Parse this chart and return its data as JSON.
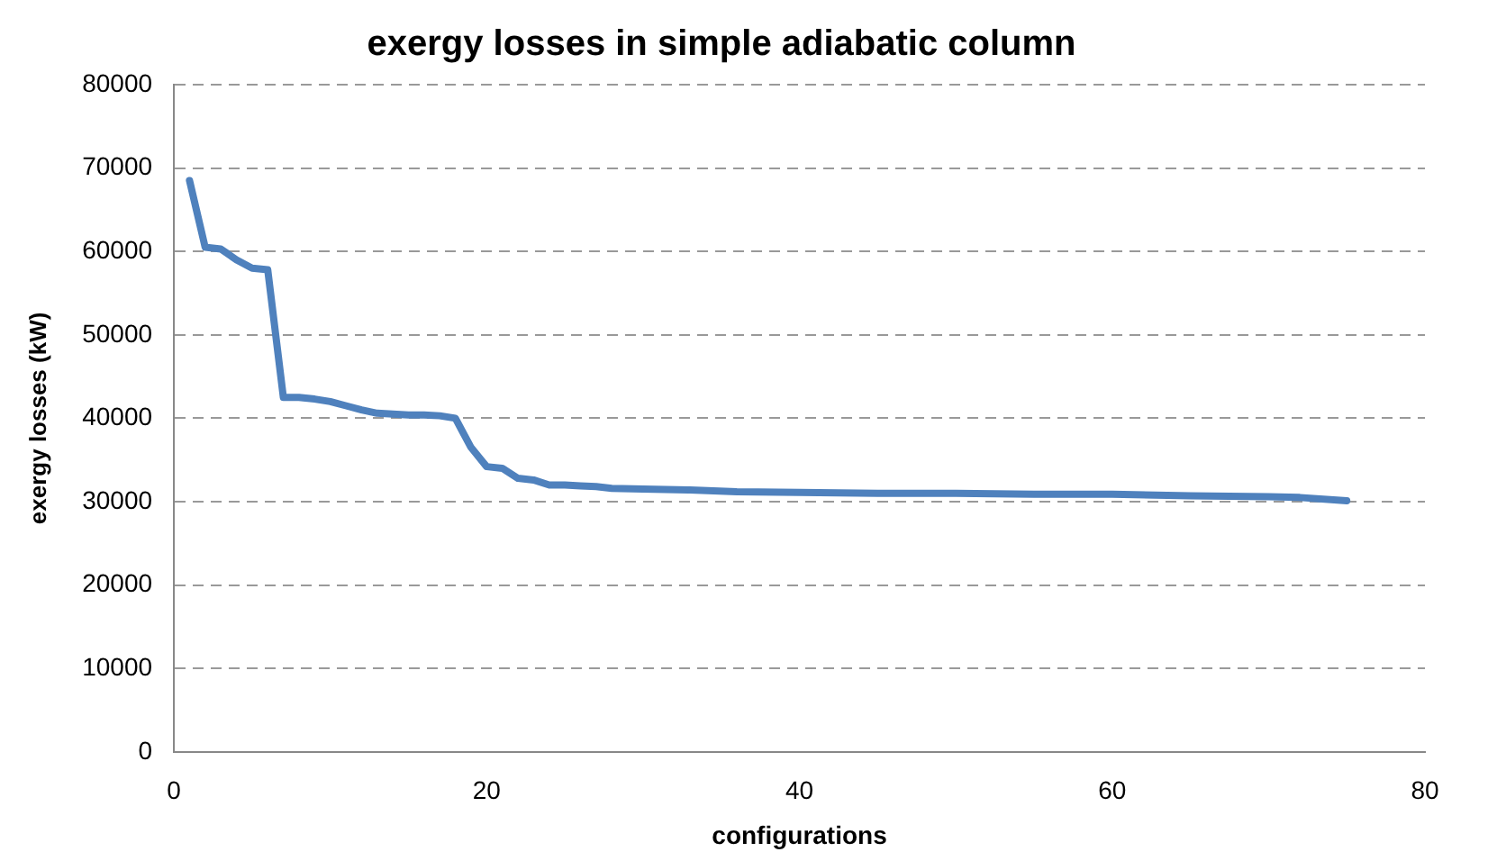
{
  "chart_data": {
    "type": "line",
    "title": "exergy losses in simple adiabatic column",
    "xlabel": "configurations",
    "ylabel": "exergy losses (kW)",
    "x": [
      1,
      2,
      3,
      4,
      5,
      6,
      7,
      8,
      9,
      10,
      11,
      12,
      13,
      14,
      15,
      16,
      17,
      18,
      19,
      20,
      21,
      22,
      23,
      24,
      25,
      26,
      27,
      28,
      30,
      33,
      36,
      40,
      45,
      50,
      55,
      60,
      65,
      70,
      72,
      75
    ],
    "series": [
      {
        "color": "#4f81bd",
        "values": [
          68500,
          60500,
          60300,
          59000,
          58000,
          57800,
          42500,
          42500,
          42300,
          42000,
          41500,
          41000,
          40600,
          40500,
          40400,
          40400,
          40300,
          40000,
          36500,
          34200,
          34000,
          32800,
          32600,
          32000,
          32000,
          31900,
          31800,
          31600,
          31500,
          31400,
          31200,
          31100,
          31000,
          31000,
          30900,
          30900,
          30700,
          30600,
          30500,
          30100
        ]
      }
    ],
    "xlim": [
      0,
      80
    ],
    "xticks": [
      0,
      20,
      40,
      60,
      80
    ],
    "ylim": [
      0,
      80000
    ],
    "yticks": [
      0,
      10000,
      20000,
      30000,
      40000,
      50000,
      60000,
      70000,
      80000
    ],
    "grid": "y",
    "legend": false,
    "marker": "none",
    "line_style": "solid"
  }
}
